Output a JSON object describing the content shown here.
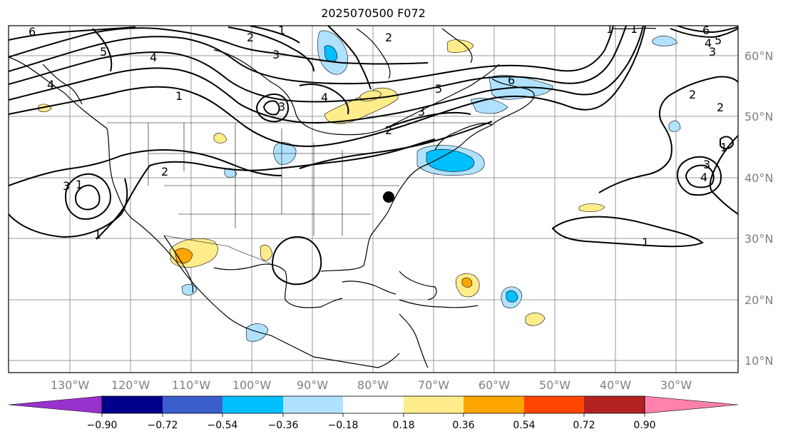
{
  "title": "2025070500 F072",
  "map": {
    "lat_labels": [
      "60°N",
      "50°N",
      "40°N",
      "30°N",
      "20°N",
      "10°N"
    ],
    "lon_labels": [
      "130°W",
      "120°W",
      "110°W",
      "100°W",
      "90°W",
      "80°W",
      "70°W",
      "60°W",
      "50°W",
      "40°W",
      "30°W"
    ],
    "contour_labels": [
      "6",
      "5",
      "4",
      "3",
      "2",
      "1",
      "1",
      "2",
      "3",
      "4",
      "5",
      "6",
      "3",
      "4",
      "1",
      "2",
      "3",
      "1",
      "2",
      "2",
      "6",
      "5",
      "4",
      "3",
      "1",
      "1",
      "4",
      "3",
      "2",
      "1",
      "1"
    ],
    "land_color": "#ffffff",
    "coast_color": "#000000"
  },
  "colorbar": {
    "ticks": [
      "−0.90",
      "−0.72",
      "−0.54",
      "−0.36",
      "−0.18",
      "0.18",
      "0.36",
      "0.54",
      "0.72",
      "0.90"
    ],
    "colors": [
      "#9932cc",
      "#00008b",
      "#3a5fcd",
      "#00bfff",
      "#b0e2ff",
      "#ffffff",
      "#ffec8b",
      "#ffa500",
      "#ff4500",
      "#b22222",
      "#ff82ab"
    ]
  }
}
